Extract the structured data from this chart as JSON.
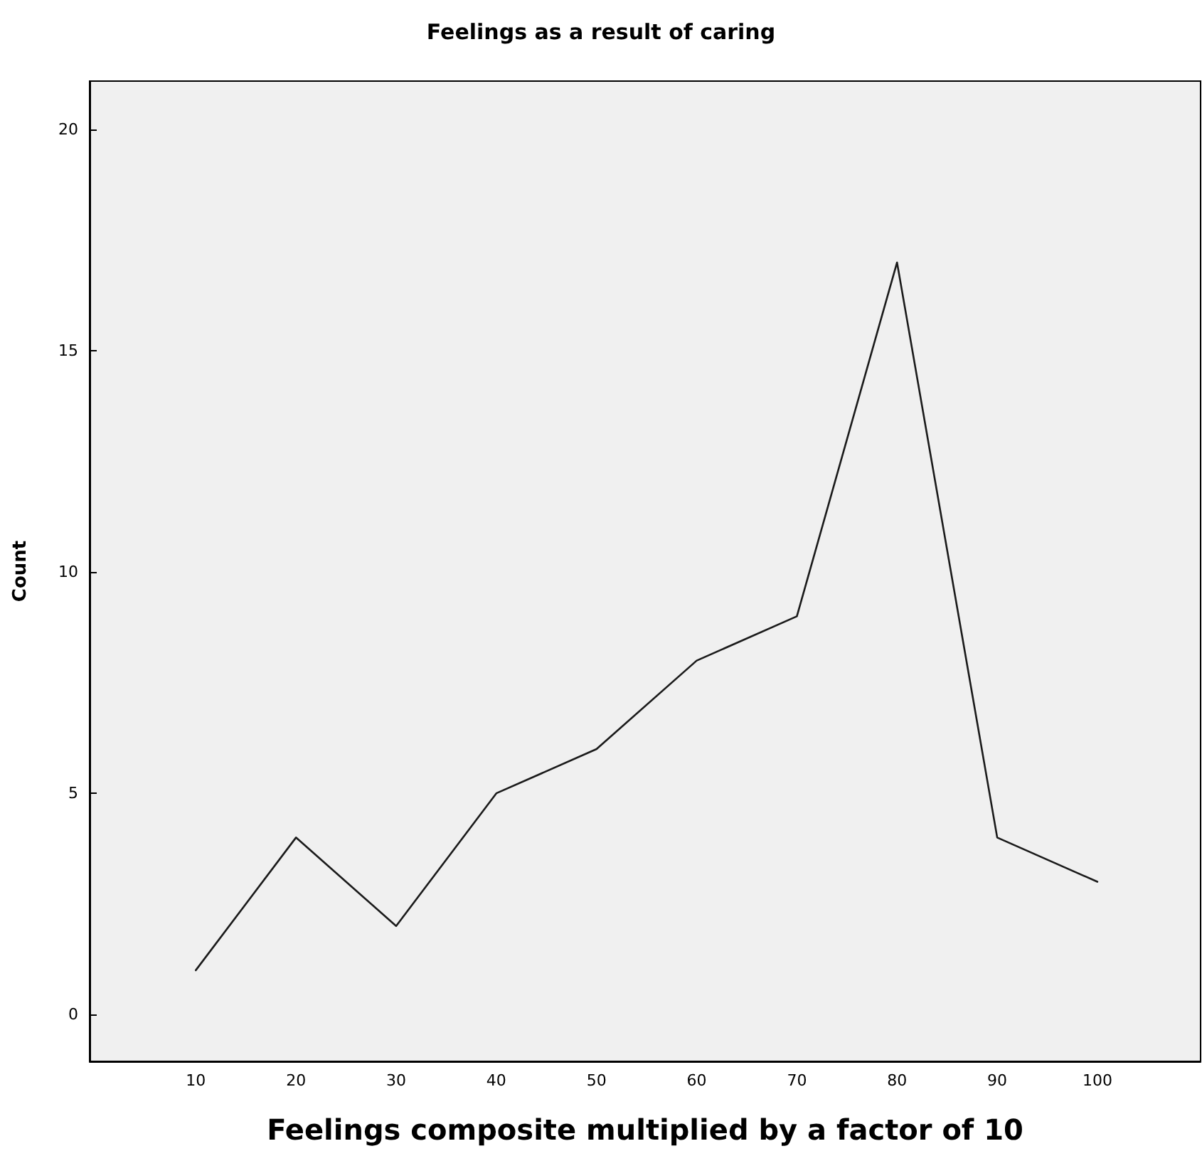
{
  "chart_data": {
    "type": "line",
    "title": "Feelings as a result of caring",
    "xlabel": "Feelings composite multiplied by a factor of 10",
    "ylabel": "Count",
    "x": [
      10,
      20,
      30,
      40,
      50,
      60,
      70,
      80,
      90,
      100
    ],
    "series": [
      {
        "color": "#1a1a1a",
        "values": [
          1,
          4,
          2,
          5,
          6,
          8,
          9,
          17,
          4,
          3
        ]
      }
    ],
    "xlim": [
      -0.6,
      110.3
    ],
    "xticks": [
      10,
      20,
      30,
      40,
      50,
      60,
      70,
      80,
      90,
      100
    ],
    "ylim": [
      -1.06,
      21.1
    ],
    "yticks": [
      0,
      5,
      10,
      15,
      20
    ],
    "grid": false,
    "marker": "none",
    "line_style": "solid"
  }
}
